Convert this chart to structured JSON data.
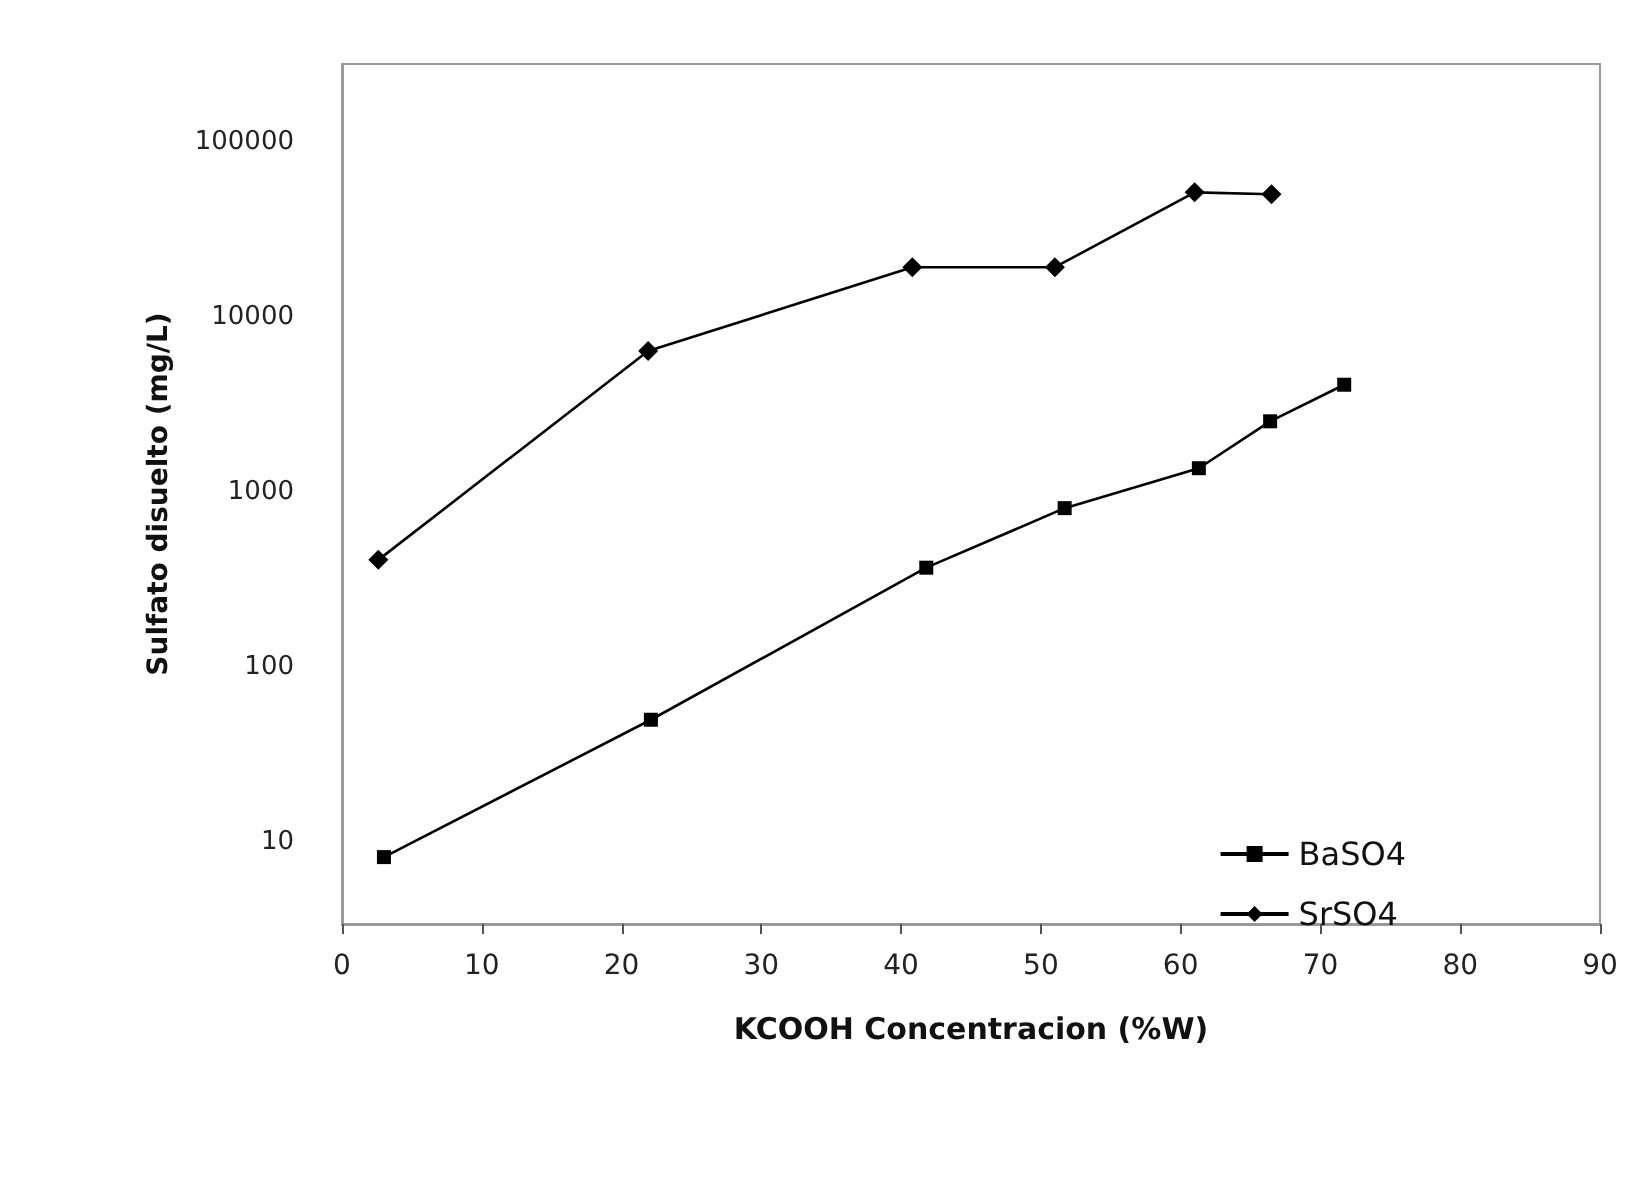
{
  "chart_data": {
    "type": "line",
    "xlabel": "KCOOH Concentracion (%W)",
    "ylabel": "Sulfato disuelto (mg/L)",
    "log": "y",
    "xlim": [
      0,
      90
    ],
    "xticks": [
      0,
      10,
      20,
      30,
      40,
      50,
      60,
      70,
      80,
      90
    ],
    "ylim": [
      3.4,
      280000
    ],
    "yticks": [
      10,
      100,
      1000,
      10000,
      100000
    ],
    "grid": false,
    "legend": "bottom right",
    "series": [
      {
        "name": "BaSO4",
        "color": "#000000",
        "marker": "square",
        "x": [
          3.0,
          22.1,
          41.8,
          51.7,
          61.3,
          66.4,
          71.7
        ],
        "values": [
          8.2,
          50,
          370,
          810,
          1370,
          2540,
          4110
        ]
      },
      {
        "name": "SrSO4",
        "color": "#000000",
        "marker": "diamond",
        "x": [
          2.6,
          21.9,
          40.8,
          51.0,
          61.0,
          66.5
        ],
        "values": [
          410,
          6400,
          19300,
          19300,
          51700,
          50400
        ]
      }
    ]
  }
}
